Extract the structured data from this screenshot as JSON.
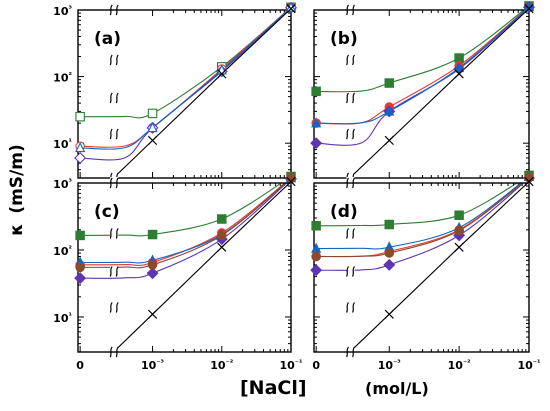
{
  "ylabel": {
    "symbol": "κ",
    "unit": "(mS/m)"
  },
  "xlabel": {
    "main": "[NaCl]",
    "unit": "(mol/L)"
  },
  "chart_data": {
    "type": "scatter",
    "x_scale": "log-with-zero-break",
    "y_scale": "log",
    "xlim": [
      0,
      0.1
    ],
    "ylim": [
      3,
      1000
    ],
    "x_tick_labels": [
      "0",
      "10⁻³",
      "10⁻²",
      "10⁻¹"
    ],
    "y_tick_labels": [
      "10¹",
      "10²",
      "10³"
    ],
    "panels": [
      {
        "label": "(a)",
        "series": [
          {
            "color": "#2e7d32",
            "marker": "square-open",
            "x": [
              0,
              0.001,
              0.01,
              0.1
            ],
            "y": [
              25,
              28,
              140,
              1100
            ]
          },
          {
            "color": "#e53935",
            "marker": "circle-open",
            "x": [
              0,
              0.001,
              0.01,
              0.1
            ],
            "y": [
              9,
              17,
              130,
              1100
            ]
          },
          {
            "color": "#5e35b1",
            "marker": "diamond-open",
            "x": [
              0,
              0.001,
              0.01,
              0.1
            ],
            "y": [
              6,
              17,
              120,
              1080
            ]
          },
          {
            "color": "#1565c0",
            "marker": "triangle-open",
            "x": [
              0,
              0.001,
              0.01,
              0.1
            ],
            "y": [
              8.5,
              17,
              125,
              1090
            ]
          },
          {
            "color": "#000000",
            "marker": "x",
            "x": [
              0.001,
              0.01,
              0.1
            ],
            "y": [
              11,
              110,
              1050
            ]
          }
        ]
      },
      {
        "label": "(b)",
        "series": [
          {
            "color": "#2e7d32",
            "marker": "square-mixed",
            "x": [
              0,
              0.001,
              0.01,
              0.1
            ],
            "y": [
              60,
              80,
              190,
              1150
            ]
          },
          {
            "color": "#e53935",
            "marker": "circle-mixed",
            "x": [
              0,
              0.001,
              0.01,
              0.1
            ],
            "y": [
              20,
              35,
              145,
              1120
            ]
          },
          {
            "color": "#5e35b1",
            "marker": "diamond-mixed",
            "x": [
              0,
              0.001,
              0.01,
              0.1
            ],
            "y": [
              10,
              30,
              130,
              1100
            ]
          },
          {
            "color": "#1565c0",
            "marker": "triangle-mixed",
            "x": [
              0,
              0.001,
              0.01,
              0.1
            ],
            "y": [
              20,
              30,
              135,
              1110
            ]
          },
          {
            "color": "#000000",
            "marker": "x",
            "x": [
              0.001,
              0.01,
              0.1
            ],
            "y": [
              11,
              110,
              1050
            ]
          }
        ]
      },
      {
        "label": "(c)",
        "series": [
          {
            "color": "#2e7d32",
            "marker": "square-mixed",
            "x": [
              0,
              0.001,
              0.01,
              0.1
            ],
            "y": [
              165,
              170,
              290,
              1250
            ]
          },
          {
            "color": "#e53935",
            "marker": "circle-mixed",
            "x": [
              0,
              0.001,
              0.01,
              0.1
            ],
            "y": [
              60,
              65,
              180,
              1200
            ]
          },
          {
            "color": "#5e35b1",
            "marker": "diamond-mixed",
            "x": [
              0,
              0.001,
              0.01,
              0.1
            ],
            "y": [
              38,
              45,
              145,
              1150
            ]
          },
          {
            "color": "#1565c0",
            "marker": "triangle-mixed",
            "x": [
              0,
              0.001,
              0.01,
              0.1
            ],
            "y": [
              65,
              70,
              170,
              1180
            ]
          },
          {
            "color": "#8d4a2b",
            "marker": "circle-filled",
            "x": [
              0,
              0.001,
              0.01,
              0.1
            ],
            "y": [
              55,
              60,
              165,
              1190
            ]
          },
          {
            "color": "#000000",
            "marker": "x",
            "x": [
              0.001,
              0.01,
              0.1
            ],
            "y": [
              11,
              110,
              1050
            ]
          }
        ]
      },
      {
        "label": "(d)",
        "series": [
          {
            "color": "#2e7d32",
            "marker": "square-filled",
            "x": [
              0,
              0.001,
              0.01,
              0.1
            ],
            "y": [
              230,
              240,
              330,
              1300
            ]
          },
          {
            "color": "#e53935",
            "marker": "circle-filled",
            "x": [
              0,
              0.001,
              0.01,
              0.1
            ],
            "y": [
              80,
              95,
              200,
              1220
            ]
          },
          {
            "color": "#5e35b1",
            "marker": "diamond-filled",
            "x": [
              0,
              0.001,
              0.01,
              0.1
            ],
            "y": [
              50,
              60,
              165,
              1180
            ]
          },
          {
            "color": "#1565c0",
            "marker": "triangle-filled",
            "x": [
              0,
              0.001,
              0.01,
              0.1
            ],
            "y": [
              105,
              110,
              215,
              1240
            ]
          },
          {
            "color": "#8d4a2b",
            "marker": "circle-filled",
            "x": [
              0,
              0.001,
              0.01,
              0.1
            ],
            "y": [
              80,
              90,
              195,
              1210
            ]
          },
          {
            "color": "#000000",
            "marker": "x",
            "x": [
              0.001,
              0.01,
              0.1
            ],
            "y": [
              11,
              110,
              1050
            ]
          }
        ]
      }
    ]
  }
}
